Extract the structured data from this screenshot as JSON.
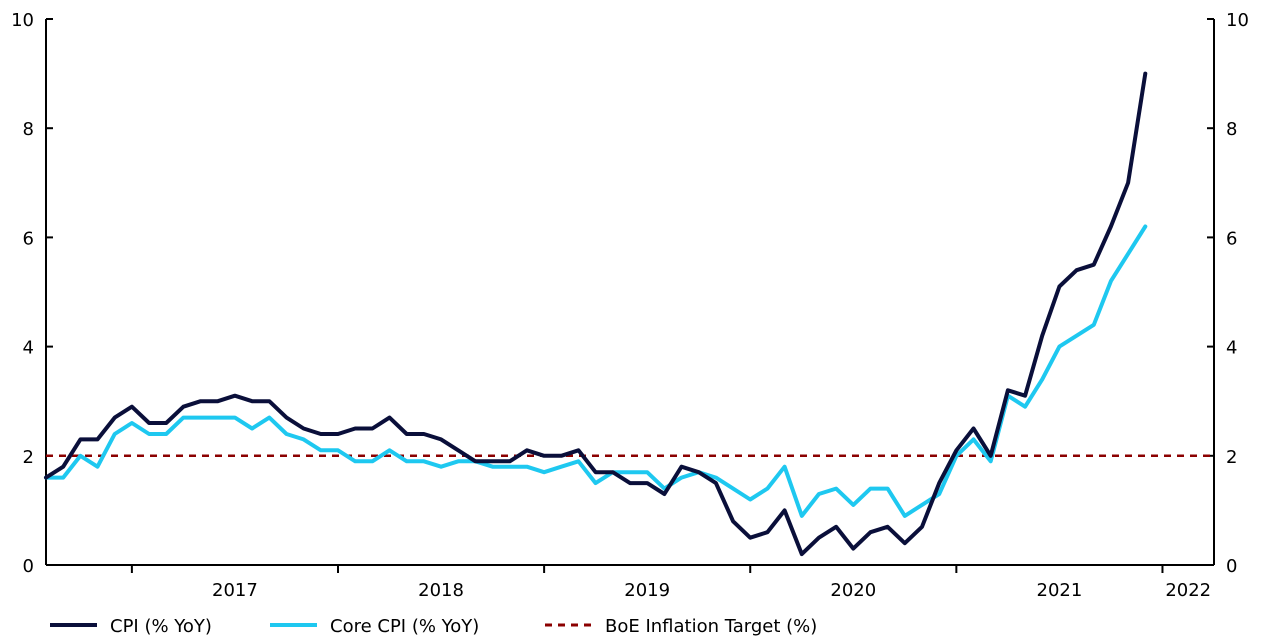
{
  "chart_data": {
    "type": "line",
    "title": "",
    "xlabel": "",
    "ylabel": "",
    "ylim": [
      0,
      10
    ],
    "y_ticks": [
      "0",
      "2",
      "4",
      "6",
      "8",
      "10"
    ],
    "x_tick_labels": [
      "2017",
      "2018",
      "2019",
      "2020",
      "2021",
      "2022"
    ],
    "x_start": "2016-08",
    "x_end": "2022-04",
    "legend_position": "bottom",
    "colors": {
      "cpi": "#0a0f3a",
      "core": "#1ec8f0",
      "target": "#8b0000"
    },
    "series": [
      {
        "name": "CPI (% YoY)",
        "values": [
          1.6,
          1.8,
          2.3,
          2.3,
          2.7,
          2.9,
          2.6,
          2.6,
          2.9,
          3.0,
          3.0,
          3.1,
          3.0,
          3.0,
          2.7,
          2.5,
          2.4,
          2.4,
          2.5,
          2.5,
          2.7,
          2.4,
          2.4,
          2.3,
          2.1,
          1.9,
          1.9,
          1.9,
          2.1,
          2.0,
          2.0,
          2.1,
          1.7,
          1.7,
          1.5,
          1.5,
          1.3,
          1.8,
          1.7,
          1.5,
          0.8,
          0.5,
          0.6,
          1.0,
          0.2,
          0.5,
          0.7,
          0.3,
          0.6,
          0.7,
          0.4,
          0.7,
          1.5,
          2.1,
          2.5,
          2.0,
          3.2,
          3.1,
          4.2,
          5.1,
          5.4,
          5.5,
          6.2,
          7.0,
          9.0
        ]
      },
      {
        "name": "Core CPI (% YoY)",
        "values": [
          1.6,
          1.6,
          2.0,
          1.8,
          2.4,
          2.6,
          2.4,
          2.4,
          2.7,
          2.7,
          2.7,
          2.7,
          2.5,
          2.7,
          2.4,
          2.3,
          2.1,
          2.1,
          1.9,
          1.9,
          2.1,
          1.9,
          1.9,
          1.8,
          1.9,
          1.9,
          1.8,
          1.8,
          1.8,
          1.7,
          1.8,
          1.9,
          1.5,
          1.7,
          1.7,
          1.7,
          1.4,
          1.6,
          1.7,
          1.6,
          1.4,
          1.2,
          1.4,
          1.8,
          0.9,
          1.3,
          1.4,
          1.1,
          1.4,
          1.4,
          0.9,
          1.1,
          1.3,
          2.0,
          2.3,
          1.9,
          3.1,
          2.9,
          3.4,
          4.0,
          4.2,
          4.4,
          5.2,
          5.7,
          6.2
        ]
      },
      {
        "name": "BoE Inflation Target (%)",
        "values": [
          2
        ]
      }
    ]
  }
}
